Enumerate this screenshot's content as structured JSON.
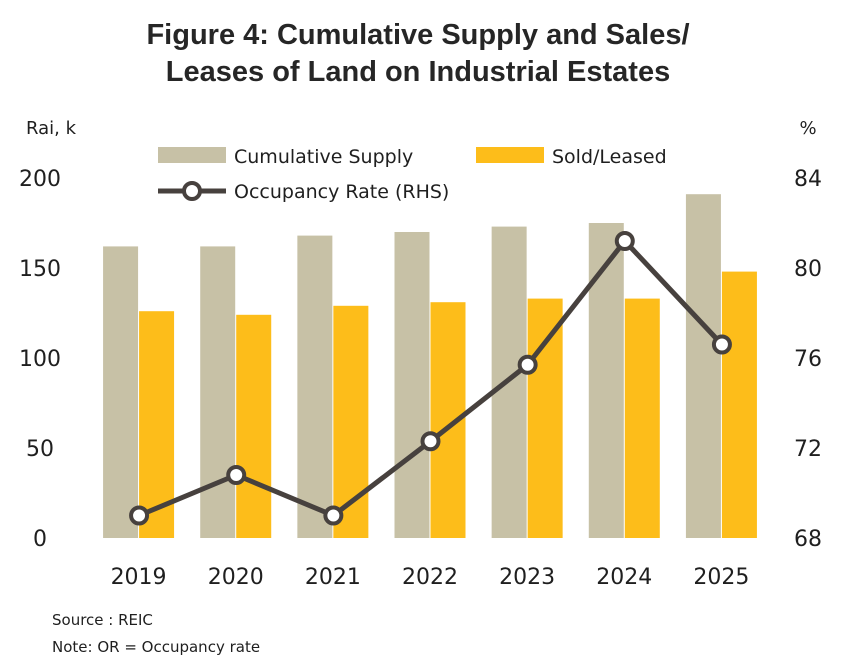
{
  "chart_data": {
    "type": "bar",
    "title_lines": [
      "Figure 4: Cumulative Supply and Sales/",
      "Leases of Land on Industrial Estates"
    ],
    "left_axis_unit": "Rai, k",
    "right_axis_unit": "%",
    "categories": [
      "2019",
      "2020",
      "2021",
      "2022",
      "2023",
      "2024",
      "2025"
    ],
    "ylim": [
      0,
      200
    ],
    "yticks": [
      "0",
      "50",
      "100",
      "150",
      "200"
    ],
    "y2lim": [
      68,
      84
    ],
    "y2ticks": [
      "68",
      "72",
      "76",
      "80",
      "84"
    ],
    "grid": false,
    "legend_position": "top",
    "series": [
      {
        "name": "Cumulative Supply",
        "kind": "bar",
        "axis": "left",
        "color": "#c7c1a6",
        "values": [
          162,
          162,
          168,
          170,
          173,
          175,
          191
        ]
      },
      {
        "name": "Sold/Leased",
        "kind": "bar",
        "axis": "left",
        "color": "#fdbd1a",
        "values": [
          126,
          124,
          129,
          131,
          133,
          133,
          148
        ]
      },
      {
        "name": "Occupancy Rate (RHS)",
        "kind": "line",
        "axis": "right",
        "color": "#47413e",
        "values": [
          69.0,
          70.8,
          69.0,
          72.3,
          75.7,
          81.2,
          76.6
        ]
      }
    ],
    "notes": [
      "Source : REIC",
      "Note: OR = Occupancy rate"
    ]
  }
}
